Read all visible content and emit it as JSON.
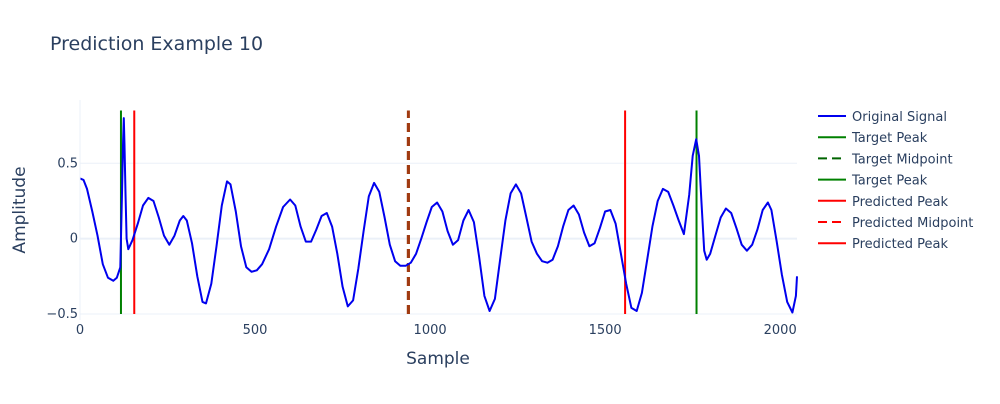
{
  "chart_data": {
    "type": "line",
    "title": "Prediction Example 10",
    "xlabel": "Sample",
    "ylabel": "Amplitude",
    "xlim": [
      0,
      2048
    ],
    "ylim": [
      -0.54,
      0.92
    ],
    "x_ticks": [
      0,
      500,
      1000,
      1500,
      2000
    ],
    "y_ticks": [
      -0.5,
      0,
      0.5
    ],
    "x_tick_labels": [
      "0",
      "500",
      "1000",
      "1500",
      "2000"
    ],
    "y_tick_labels": [
      "−0.5",
      "0",
      "0.5"
    ],
    "grid": "horizontal",
    "legend_position": "right",
    "series": [
      {
        "name": "Original Signal",
        "color": "#0000ee",
        "style": "solid",
        "points": [
          [
            0,
            0.4
          ],
          [
            10,
            0.39
          ],
          [
            20,
            0.33
          ],
          [
            35,
            0.18
          ],
          [
            50,
            0.02
          ],
          [
            65,
            -0.17
          ],
          [
            80,
            -0.26
          ],
          [
            95,
            -0.28
          ],
          [
            105,
            -0.26
          ],
          [
            115,
            -0.19
          ],
          [
            120,
            0.3
          ],
          [
            123,
            0.65
          ],
          [
            125,
            0.8
          ],
          [
            127,
            0.62
          ],
          [
            130,
            0.3
          ],
          [
            133,
            0.0
          ],
          [
            138,
            -0.07
          ],
          [
            150,
            -0.01
          ],
          [
            165,
            0.1
          ],
          [
            180,
            0.22
          ],
          [
            195,
            0.27
          ],
          [
            210,
            0.25
          ],
          [
            225,
            0.14
          ],
          [
            240,
            0.02
          ],
          [
            255,
            -0.04
          ],
          [
            270,
            0.02
          ],
          [
            285,
            0.12
          ],
          [
            295,
            0.15
          ],
          [
            305,
            0.12
          ],
          [
            320,
            -0.03
          ],
          [
            335,
            -0.25
          ],
          [
            350,
            -0.42
          ],
          [
            360,
            -0.43
          ],
          [
            375,
            -0.3
          ],
          [
            390,
            -0.05
          ],
          [
            405,
            0.22
          ],
          [
            420,
            0.38
          ],
          [
            430,
            0.36
          ],
          [
            445,
            0.18
          ],
          [
            460,
            -0.05
          ],
          [
            475,
            -0.19
          ],
          [
            490,
            -0.22
          ],
          [
            505,
            -0.21
          ],
          [
            520,
            -0.17
          ],
          [
            540,
            -0.07
          ],
          [
            560,
            0.08
          ],
          [
            580,
            0.21
          ],
          [
            600,
            0.26
          ],
          [
            615,
            0.22
          ],
          [
            630,
            0.08
          ],
          [
            645,
            -0.02
          ],
          [
            660,
            -0.02
          ],
          [
            675,
            0.06
          ],
          [
            690,
            0.15
          ],
          [
            705,
            0.17
          ],
          [
            720,
            0.08
          ],
          [
            735,
            -0.1
          ],
          [
            750,
            -0.32
          ],
          [
            765,
            -0.45
          ],
          [
            780,
            -0.41
          ],
          [
            795,
            -0.2
          ],
          [
            810,
            0.05
          ],
          [
            825,
            0.28
          ],
          [
            840,
            0.37
          ],
          [
            855,
            0.31
          ],
          [
            870,
            0.14
          ],
          [
            885,
            -0.04
          ],
          [
            900,
            -0.15
          ],
          [
            915,
            -0.18
          ],
          [
            930,
            -0.18
          ],
          [
            945,
            -0.16
          ],
          [
            960,
            -0.1
          ],
          [
            975,
            0.0
          ],
          [
            990,
            0.11
          ],
          [
            1005,
            0.21
          ],
          [
            1020,
            0.24
          ],
          [
            1035,
            0.18
          ],
          [
            1050,
            0.05
          ],
          [
            1065,
            -0.04
          ],
          [
            1080,
            -0.01
          ],
          [
            1095,
            0.12
          ],
          [
            1110,
            0.19
          ],
          [
            1125,
            0.11
          ],
          [
            1140,
            -0.12
          ],
          [
            1155,
            -0.38
          ],
          [
            1170,
            -0.48
          ],
          [
            1185,
            -0.4
          ],
          [
            1200,
            -0.14
          ],
          [
            1215,
            0.12
          ],
          [
            1230,
            0.3
          ],
          [
            1245,
            0.36
          ],
          [
            1260,
            0.3
          ],
          [
            1275,
            0.14
          ],
          [
            1290,
            -0.02
          ],
          [
            1305,
            -0.1
          ],
          [
            1320,
            -0.15
          ],
          [
            1335,
            -0.16
          ],
          [
            1350,
            -0.14
          ],
          [
            1365,
            -0.05
          ],
          [
            1380,
            0.08
          ],
          [
            1395,
            0.19
          ],
          [
            1410,
            0.22
          ],
          [
            1425,
            0.16
          ],
          [
            1440,
            0.04
          ],
          [
            1455,
            -0.05
          ],
          [
            1470,
            -0.03
          ],
          [
            1485,
            0.07
          ],
          [
            1500,
            0.18
          ],
          [
            1515,
            0.19
          ],
          [
            1530,
            0.1
          ],
          [
            1545,
            -0.1
          ],
          [
            1560,
            -0.3
          ],
          [
            1575,
            -0.46
          ],
          [
            1590,
            -0.48
          ],
          [
            1605,
            -0.36
          ],
          [
            1620,
            -0.14
          ],
          [
            1635,
            0.08
          ],
          [
            1650,
            0.25
          ],
          [
            1665,
            0.33
          ],
          [
            1680,
            0.31
          ],
          [
            1695,
            0.22
          ],
          [
            1710,
            0.12
          ],
          [
            1725,
            0.03
          ],
          [
            1740,
            0.29
          ],
          [
            1750,
            0.55
          ],
          [
            1760,
            0.66
          ],
          [
            1768,
            0.55
          ],
          [
            1775,
            0.25
          ],
          [
            1783,
            -0.08
          ],
          [
            1790,
            -0.14
          ],
          [
            1800,
            -0.1
          ],
          [
            1815,
            0.02
          ],
          [
            1830,
            0.14
          ],
          [
            1845,
            0.2
          ],
          [
            1860,
            0.17
          ],
          [
            1875,
            0.07
          ],
          [
            1890,
            -0.04
          ],
          [
            1905,
            -0.08
          ],
          [
            1920,
            -0.04
          ],
          [
            1935,
            0.06
          ],
          [
            1950,
            0.19
          ],
          [
            1965,
            0.24
          ],
          [
            1975,
            0.19
          ],
          [
            1990,
            -0.02
          ],
          [
            2005,
            -0.24
          ],
          [
            2020,
            -0.42
          ],
          [
            2035,
            -0.49
          ],
          [
            2045,
            -0.38
          ],
          [
            2048,
            -0.25
          ]
        ]
      }
    ],
    "vlines": [
      {
        "name": "Target Peak",
        "x": 117,
        "y0": -0.5,
        "y1": 0.85,
        "color": "#008000",
        "style": "solid"
      },
      {
        "name": "Target Midpoint",
        "x": 938,
        "y0": -0.5,
        "y1": 0.85,
        "color": "#006400",
        "style": "dash"
      },
      {
        "name": "Target Peak",
        "x": 1761,
        "y0": -0.5,
        "y1": 0.85,
        "color": "#008000",
        "style": "solid"
      },
      {
        "name": "Predicted Peak",
        "x": 155,
        "y0": -0.5,
        "y1": 0.85,
        "color": "#ff0000",
        "style": "solid"
      },
      {
        "name": "Predicted Midpoint",
        "x": 938,
        "y0": -0.5,
        "y1": 0.8,
        "color": "#ff0000",
        "style": "dash"
      },
      {
        "name": "Predicted Peak",
        "x": 1557,
        "y0": -0.5,
        "y1": 0.85,
        "color": "#ff0000",
        "style": "solid"
      }
    ],
    "legend": [
      {
        "label": "Original Signal",
        "color": "#0000ee",
        "style": "solid"
      },
      {
        "label": "Target Peak",
        "color": "#008000",
        "style": "solid"
      },
      {
        "label": "Target Midpoint",
        "color": "#006400",
        "style": "dash"
      },
      {
        "label": "Target Peak",
        "color": "#008000",
        "style": "solid"
      },
      {
        "label": "Predicted Peak",
        "color": "#ff0000",
        "style": "solid"
      },
      {
        "label": "Predicted Midpoint",
        "color": "#ff0000",
        "style": "dash"
      },
      {
        "label": "Predicted Peak",
        "color": "#ff0000",
        "style": "solid"
      }
    ],
    "colors": {
      "text": "#2a3f5f",
      "grid": "#ebf0f8",
      "zeroline": "#ebf0f8",
      "midpoint_overlap": "#a03a10"
    }
  }
}
